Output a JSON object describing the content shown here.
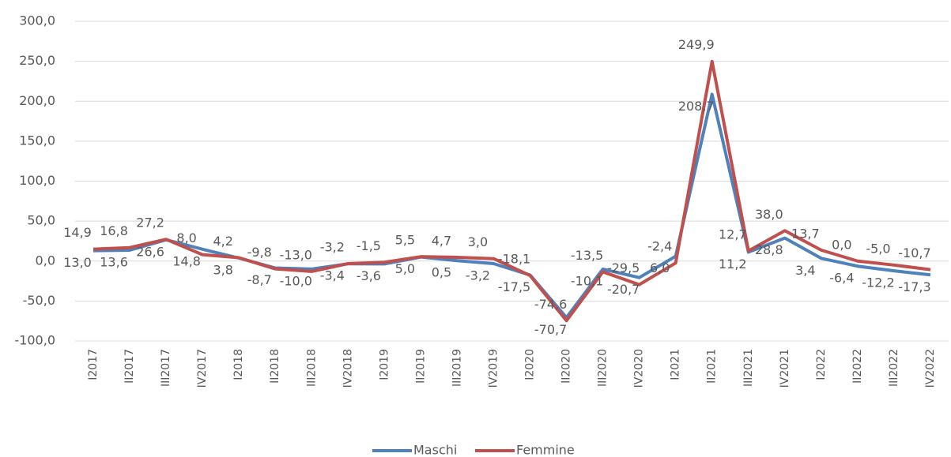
{
  "chart_data": {
    "type": "line",
    "categories": [
      "I2017",
      "II2017",
      "III2017",
      "IV2017",
      "I2018",
      "II2018",
      "III2018",
      "IV2018",
      "I2019",
      "II2019",
      "III2019",
      "IV2019",
      "I2020",
      "II2020",
      "III2020",
      "IV2020",
      "I2021",
      "II2021",
      "III2021",
      "IV2021",
      "I2022",
      "II2022",
      "III2022",
      "IV2022"
    ],
    "series": [
      {
        "name": "Maschi",
        "color": "#4f81bd",
        "values": [
          13.0,
          13.6,
          26.6,
          14.8,
          3.8,
          -8.7,
          -10.0,
          -3.4,
          -3.6,
          5.0,
          0.5,
          -3.2,
          -17.5,
          -70.7,
          -10.1,
          -20.7,
          6.0,
          208.7,
          11.2,
          28.8,
          3.4,
          -6.4,
          -12.2,
          -17.3
        ],
        "value_labels": [
          "13,0",
          "13,6",
          "26,6",
          "14,8",
          "3,8",
          "-8,7",
          "-10,0",
          "-3,4",
          "-3,6",
          "5,0",
          "0,5",
          "-3,2",
          "-17,5",
          "-70,7",
          "-10,1",
          "-20,7",
          "6,0",
          "208,7",
          "11,2",
          "28,8",
          "3,4",
          "-6,4",
          "-12,2",
          "-17,3"
        ]
      },
      {
        "name": "Femmine",
        "color": "#c0504d",
        "values": [
          14.9,
          16.8,
          27.2,
          8.0,
          4.2,
          -9.8,
          -13.0,
          -3.2,
          -1.5,
          5.5,
          4.7,
          3.0,
          -18.1,
          -74.6,
          -13.5,
          -29.5,
          -2.4,
          249.9,
          12.7,
          38.0,
          13.7,
          0.0,
          -5.0,
          -10.7
        ],
        "value_labels": [
          "14,9",
          "16,8",
          "27,2",
          "8,0",
          "4,2",
          "-9,8",
          "-13,0",
          "-3,2",
          "-1,5",
          "5,5",
          "4,7",
          "3,0",
          "-18,1",
          "-74,6",
          "-13,5",
          "-29,5",
          "-2,4",
          "249,9",
          "12,7",
          "38,0",
          "13,7",
          "0,0",
          "-5,0",
          "-10,7"
        ]
      }
    ],
    "ylim": [
      -100,
      300
    ],
    "yticks": [
      {
        "value": -100,
        "label": "-100,0"
      },
      {
        "value": -50,
        "label": "-50,0"
      },
      {
        "value": 0,
        "label": "0,0"
      },
      {
        "value": 50,
        "label": "50,0"
      },
      {
        "value": 100,
        "label": "100,0"
      },
      {
        "value": 150,
        "label": "150,0"
      },
      {
        "value": 200,
        "label": "200,0"
      },
      {
        "value": 250,
        "label": "250,0"
      },
      {
        "value": 300,
        "label": "300,0"
      }
    ],
    "grid": true,
    "legend": "bottom"
  }
}
